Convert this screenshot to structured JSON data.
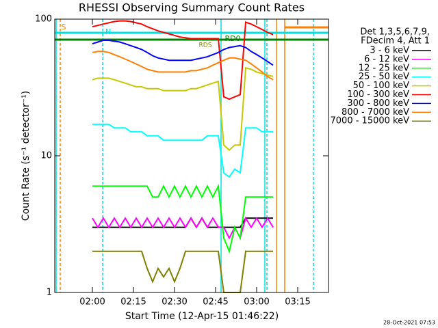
{
  "chart_data": {
    "type": "line",
    "title": "RHESSI Observing Summary Count Rates",
    "x_label": "Start Time (12-Apr-15 01:46:22)",
    "y_label": "Count Rate (s⁻¹ detector⁻¹)",
    "footer": "28-Oct-2021 07:53",
    "legend_title": [
      "Det 1,3,5,6,7,9,",
      "FDecim 4, Att 1"
    ],
    "log_y": true,
    "xlim": [
      106.25,
      206.25
    ],
    "ylim": [
      1,
      100
    ],
    "xticks": [
      {
        "value": 120,
        "label": "02:00"
      },
      {
        "value": 135,
        "label": "02:15"
      },
      {
        "value": 150,
        "label": "02:30"
      },
      {
        "value": 165,
        "label": "02:45"
      },
      {
        "value": 180,
        "label": "03:00"
      },
      {
        "value": 195,
        "label": "03:15"
      }
    ],
    "yticks": [
      1,
      10,
      100
    ],
    "annotations": [
      {
        "text": "S",
        "color": "#ff8000"
      },
      {
        "text": "N",
        "color": "#00e0e0"
      },
      {
        "text": "RD0",
        "color": "#008000"
      },
      {
        "text": "RDS",
        "color": "#808000"
      }
    ],
    "x": [
      120,
      122,
      124,
      126,
      128,
      130,
      132,
      134,
      136,
      138,
      140,
      142,
      144,
      146,
      148,
      150,
      152,
      154,
      156,
      158,
      160,
      162,
      164,
      166,
      168,
      170,
      172,
      174,
      176,
      178,
      180,
      182,
      184,
      186
    ],
    "series": [
      {
        "name": "3 - 6 keV",
        "color": "#000000",
        "values": [
          3,
          3,
          3,
          3,
          3,
          3,
          3,
          3,
          3,
          3,
          3,
          3,
          3,
          3,
          3,
          3,
          3,
          3,
          3.5,
          3,
          3.5,
          3,
          3,
          3,
          3,
          3,
          3,
          3,
          3.5,
          3.5,
          3.5,
          3.5,
          3.5,
          3.5
        ]
      },
      {
        "name": "6 - 12 keV",
        "color": "#ff00ff",
        "values": [
          3.5,
          3,
          3.5,
          3,
          3.5,
          3,
          3.5,
          3,
          3.5,
          3,
          3.5,
          3,
          3.5,
          3,
          3.5,
          3,
          3.5,
          3,
          3.5,
          3,
          3.5,
          3,
          3.5,
          3,
          3,
          2.5,
          3,
          2.5,
          3.5,
          3,
          3.5,
          3,
          3.5,
          3
        ]
      },
      {
        "name": "12 - 25 keV",
        "color": "#00ff00",
        "values": [
          6,
          6,
          6,
          6,
          6,
          6,
          6,
          6,
          6,
          6,
          6,
          5,
          5,
          6,
          5,
          6,
          5,
          6,
          5,
          6,
          5,
          6,
          5,
          6,
          2.5,
          2,
          3,
          2.5,
          5,
          5,
          5,
          5,
          5,
          5
        ]
      },
      {
        "name": "25 - 50 keV",
        "color": "#00ffff",
        "values": [
          17,
          17,
          17,
          17,
          16,
          16,
          16,
          15,
          15,
          15,
          14,
          14,
          14,
          13,
          13,
          13,
          13,
          13,
          13,
          13,
          13,
          14,
          14,
          14,
          7.5,
          7,
          8,
          7.5,
          16,
          16,
          16,
          15,
          15,
          15
        ]
      },
      {
        "name": "50 - 100 keV",
        "color": "#c8c800",
        "values": [
          36,
          37,
          37,
          37,
          36,
          35,
          34,
          33,
          32,
          32,
          31,
          31,
          31,
          30,
          30,
          30,
          30,
          30,
          31,
          31,
          32,
          33,
          34,
          35,
          12,
          11,
          12,
          12,
          44,
          43,
          41,
          40,
          39,
          38
        ]
      },
      {
        "name": "100 - 300 keV",
        "color": "#ff0000",
        "values": [
          88,
          90,
          92,
          94,
          96,
          97,
          97,
          96,
          94,
          92,
          88,
          85,
          82,
          80,
          78,
          76,
          74,
          73,
          72,
          72,
          72,
          72,
          72,
          72,
          27,
          26,
          27,
          28,
          95,
          92,
          88,
          84,
          80,
          77
        ]
      },
      {
        "name": "300 - 800 keV",
        "color": "#0000ff",
        "values": [
          66,
          68,
          70,
          70,
          69,
          68,
          66,
          64,
          62,
          60,
          57,
          54,
          52,
          51,
          50,
          50,
          50,
          50,
          50,
          51,
          52,
          53,
          55,
          57,
          60,
          62,
          63,
          64,
          62,
          58,
          55,
          52,
          49,
          46
        ]
      },
      {
        "name": "800 - 7000 keV",
        "color": "#ff8000",
        "values": [
          57,
          58,
          58,
          57,
          55,
          53,
          51,
          49,
          47,
          45,
          43,
          42,
          41,
          41,
          41,
          41,
          41,
          41,
          42,
          42,
          43,
          44,
          46,
          48,
          50,
          52,
          52,
          51,
          50,
          47,
          44,
          41,
          38,
          36
        ]
      },
      {
        "name": "7000 - 15000 keV",
        "color": "#808000",
        "values": [
          2,
          2,
          2,
          2,
          2,
          2,
          2,
          2,
          2,
          2,
          1.5,
          1.2,
          1.5,
          1.3,
          1.5,
          1.2,
          1.5,
          2,
          2,
          2,
          2,
          2,
          2,
          2,
          1,
          1,
          1,
          1,
          2,
          2,
          2,
          2,
          2,
          2
        ]
      }
    ]
  }
}
